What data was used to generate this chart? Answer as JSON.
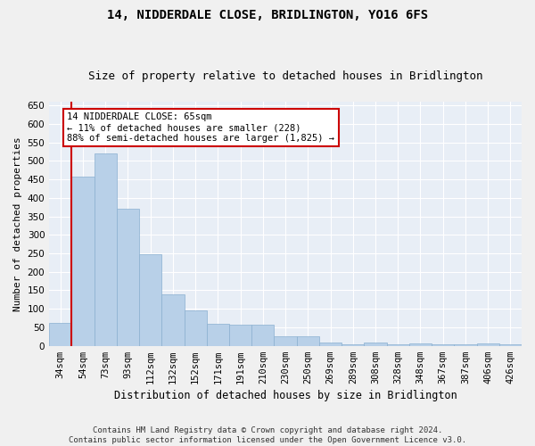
{
  "title": "14, NIDDERDALE CLOSE, BRIDLINGTON, YO16 6FS",
  "subtitle": "Size of property relative to detached houses in Bridlington",
  "xlabel": "Distribution of detached houses by size in Bridlington",
  "ylabel": "Number of detached properties",
  "categories": [
    "34sqm",
    "54sqm",
    "73sqm",
    "93sqm",
    "112sqm",
    "132sqm",
    "152sqm",
    "171sqm",
    "191sqm",
    "210sqm",
    "230sqm",
    "250sqm",
    "269sqm",
    "289sqm",
    "308sqm",
    "328sqm",
    "348sqm",
    "367sqm",
    "387sqm",
    "406sqm",
    "426sqm"
  ],
  "values": [
    62,
    457,
    521,
    370,
    248,
    140,
    95,
    60,
    58,
    57,
    25,
    25,
    8,
    5,
    10,
    5,
    7,
    5,
    3,
    7,
    3
  ],
  "bar_color": "#b8d0e8",
  "bar_edge_color": "#8ab0d0",
  "background_color": "#e8eef6",
  "grid_color": "#ffffff",
  "vline_color": "#cc0000",
  "vline_x_index": 1,
  "annotation_text": "14 NIDDERDALE CLOSE: 65sqm\n← 11% of detached houses are smaller (228)\n88% of semi-detached houses are larger (1,825) →",
  "annotation_box_edge": "#cc0000",
  "ylim": [
    0,
    660
  ],
  "yticks": [
    0,
    50,
    100,
    150,
    200,
    250,
    300,
    350,
    400,
    450,
    500,
    550,
    600,
    650
  ],
  "footer": "Contains HM Land Registry data © Crown copyright and database right 2024.\nContains public sector information licensed under the Open Government Licence v3.0.",
  "title_fontsize": 10,
  "subtitle_fontsize": 9,
  "xlabel_fontsize": 8.5,
  "ylabel_fontsize": 8,
  "tick_fontsize": 7.5,
  "annotation_fontsize": 7.5,
  "footer_fontsize": 6.5
}
